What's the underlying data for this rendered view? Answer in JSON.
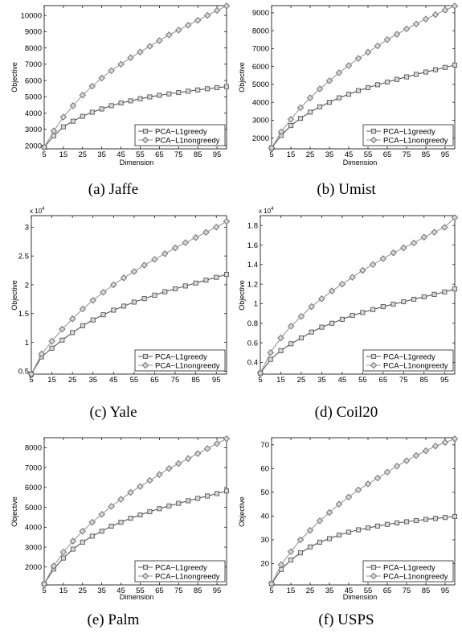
{
  "chart_data": [
    {
      "type": "line",
      "caption": "(a)  Jaffe",
      "xlabel": "Dimension",
      "ylabel": "Objective",
      "xlim": [
        5,
        100
      ],
      "ylim": [
        1800,
        10600
      ],
      "xticks": [
        5,
        15,
        25,
        35,
        45,
        55,
        65,
        75,
        85,
        95
      ],
      "yticks": [
        2000,
        3000,
        4000,
        5000,
        6000,
        7000,
        8000,
        9000,
        10000
      ],
      "yticklabels": [
        "2000",
        "3000",
        "4000",
        "5000",
        "6000",
        "7000",
        "8000",
        "9000",
        "10000"
      ],
      "multiplier": "",
      "legend_position": "lower-right",
      "x": [
        5,
        10,
        15,
        20,
        25,
        30,
        35,
        40,
        45,
        50,
        55,
        60,
        65,
        70,
        75,
        80,
        85,
        90,
        95,
        100
      ],
      "series": [
        {
          "name": "PCA−L1greedy",
          "marker": "square",
          "values": [
            1900,
            2600,
            3150,
            3500,
            3800,
            4050,
            4250,
            4450,
            4620,
            4750,
            4880,
            4990,
            5090,
            5180,
            5260,
            5340,
            5420,
            5490,
            5560,
            5620
          ]
        },
        {
          "name": "PCA−L1nongreedy",
          "marker": "diamond",
          "values": [
            1900,
            2900,
            3750,
            4450,
            5100,
            5650,
            6150,
            6600,
            7000,
            7400,
            7750,
            8100,
            8450,
            8800,
            9100,
            9400,
            9700,
            10000,
            10300,
            10580
          ]
        }
      ]
    },
    {
      "type": "line",
      "caption": "(b)  Umist",
      "xlabel": "Dimension",
      "ylabel": "Objective",
      "xlim": [
        5,
        100
      ],
      "ylim": [
        1400,
        9400
      ],
      "xticks": [
        5,
        15,
        25,
        35,
        45,
        55,
        65,
        75,
        85,
        95
      ],
      "yticks": [
        2000,
        3000,
        4000,
        5000,
        6000,
        7000,
        8000,
        9000
      ],
      "yticklabels": [
        "2000",
        "3000",
        "4000",
        "5000",
        "6000",
        "7000",
        "8000",
        "9000"
      ],
      "multiplier": "",
      "legend_position": "lower-right",
      "x": [
        5,
        10,
        15,
        20,
        25,
        30,
        35,
        40,
        45,
        50,
        55,
        60,
        65,
        70,
        75,
        80,
        85,
        90,
        95,
        100
      ],
      "series": [
        {
          "name": "PCA−L1greedy",
          "marker": "square",
          "values": [
            1450,
            2150,
            2700,
            3100,
            3450,
            3750,
            4000,
            4250,
            4450,
            4650,
            4820,
            4980,
            5130,
            5280,
            5420,
            5560,
            5690,
            5820,
            5950,
            6080
          ]
        },
        {
          "name": "PCA−L1nongreedy",
          "marker": "diamond",
          "values": [
            1450,
            2350,
            3050,
            3700,
            4250,
            4750,
            5200,
            5650,
            6050,
            6450,
            6800,
            7150,
            7500,
            7800,
            8100,
            8380,
            8650,
            8900,
            9150,
            9380
          ]
        }
      ]
    },
    {
      "type": "line",
      "caption": "(c)  Yale",
      "xlabel": "",
      "ylabel": "Objective",
      "xlim": [
        5,
        100
      ],
      "ylim": [
        4500,
        32000
      ],
      "xticks": [
        5,
        15,
        25,
        35,
        45,
        55,
        65,
        75,
        85,
        95
      ],
      "yticks": [
        5000,
        10000,
        15000,
        20000,
        25000,
        30000
      ],
      "yticklabels": [
        "0.5",
        "1",
        "1.5",
        "2",
        "2.5",
        "3"
      ],
      "multiplier": "x 10^4",
      "legend_position": "lower-right",
      "x": [
        5,
        10,
        15,
        20,
        25,
        30,
        35,
        40,
        45,
        50,
        55,
        60,
        65,
        70,
        75,
        80,
        85,
        90,
        95,
        100
      ],
      "series": [
        {
          "name": "PCA−L1greedy",
          "marker": "square",
          "values": [
            4500,
            7500,
            9000,
            10400,
            11700,
            12900,
            13900,
            14800,
            15600,
            16300,
            17000,
            17600,
            18200,
            18800,
            19300,
            19800,
            20300,
            20800,
            21300,
            21800
          ]
        },
        {
          "name": "PCA−L1nongreedy",
          "marker": "diamond",
          "values": [
            4500,
            8000,
            10200,
            12300,
            14100,
            15800,
            17300,
            18700,
            20000,
            21200,
            22300,
            23400,
            24400,
            25400,
            26400,
            27300,
            28200,
            29100,
            30000,
            31000
          ]
        }
      ]
    },
    {
      "type": "line",
      "caption": "(d)  Coil20",
      "xlabel": "",
      "ylabel": "Objective",
      "xlim": [
        5,
        100
      ],
      "ylim": [
        2800,
        19000
      ],
      "xticks": [
        5,
        15,
        25,
        35,
        45,
        55,
        65,
        75,
        85,
        95
      ],
      "yticks": [
        4000,
        6000,
        8000,
        10000,
        12000,
        14000,
        16000,
        18000
      ],
      "yticklabels": [
        "0.4",
        "0.6",
        "0.8",
        "1",
        "1.2",
        "1.4",
        "1.6",
        "1.8"
      ],
      "multiplier": "x 10^4",
      "legend_position": "lower-right",
      "x": [
        5,
        10,
        15,
        20,
        25,
        30,
        35,
        40,
        45,
        50,
        55,
        60,
        65,
        70,
        75,
        80,
        85,
        90,
        95,
        100
      ],
      "series": [
        {
          "name": "PCA−L1greedy",
          "marker": "square",
          "values": [
            2900,
            4300,
            5200,
            5900,
            6500,
            7100,
            7600,
            8000,
            8400,
            8800,
            9100,
            9400,
            9700,
            9950,
            10200,
            10450,
            10700,
            10950,
            11200,
            11500
          ]
        },
        {
          "name": "PCA−L1nongreedy",
          "marker": "diamond",
          "values": [
            2900,
            5000,
            6500,
            7700,
            8700,
            9700,
            10500,
            11300,
            12000,
            12700,
            13400,
            14000,
            14600,
            15200,
            15700,
            16200,
            16800,
            17300,
            17800,
            18800
          ]
        }
      ]
    },
    {
      "type": "line",
      "caption": "(e)  Palm",
      "xlabel": "Dimension",
      "ylabel": "Objective",
      "xlim": [
        5,
        100
      ],
      "ylim": [
        1100,
        8500
      ],
      "xticks": [
        5,
        15,
        25,
        35,
        45,
        55,
        65,
        75,
        85,
        95
      ],
      "yticks": [
        2000,
        3000,
        4000,
        5000,
        6000,
        7000,
        8000
      ],
      "yticklabels": [
        "2000",
        "3000",
        "4000",
        "5000",
        "6000",
        "7000",
        "8000"
      ],
      "multiplier": "",
      "legend_position": "lower-right",
      "x": [
        5,
        10,
        15,
        20,
        25,
        30,
        35,
        40,
        45,
        50,
        55,
        60,
        65,
        70,
        75,
        80,
        85,
        90,
        95,
        100
      ],
      "series": [
        {
          "name": "PCA−L1greedy",
          "marker": "square",
          "values": [
            1150,
            1900,
            2450,
            2900,
            3250,
            3550,
            3800,
            4050,
            4250,
            4450,
            4620,
            4780,
            4930,
            5070,
            5200,
            5330,
            5450,
            5570,
            5690,
            5820
          ]
        },
        {
          "name": "PCA−L1nongreedy",
          "marker": "diamond",
          "values": [
            1150,
            2050,
            2750,
            3300,
            3800,
            4250,
            4650,
            5050,
            5400,
            5750,
            6050,
            6350,
            6650,
            6950,
            7200,
            7450,
            7700,
            7950,
            8200,
            8450
          ]
        }
      ]
    },
    {
      "type": "line",
      "caption": "(f)  USPS",
      "xlabel": "Dimension",
      "ylabel": "Objective",
      "xlim": [
        5,
        100
      ],
      "ylim": [
        11,
        73
      ],
      "xticks": [
        5,
        15,
        25,
        35,
        45,
        55,
        65,
        75,
        85,
        95
      ],
      "yticks": [
        20,
        30,
        40,
        50,
        60,
        70
      ],
      "yticklabels": [
        "20",
        "30",
        "40",
        "50",
        "60",
        "70"
      ],
      "multiplier": "",
      "legend_position": "lower-right",
      "x": [
        5,
        10,
        15,
        20,
        25,
        30,
        35,
        40,
        45,
        50,
        55,
        60,
        65,
        70,
        75,
        80,
        85,
        90,
        95,
        100
      ],
      "series": [
        {
          "name": "PCA−L1greedy",
          "marker": "square",
          "values": [
            11.5,
            17.5,
            21.5,
            24.5,
            27,
            29,
            30.5,
            32,
            33.2,
            34.2,
            35,
            35.8,
            36.5,
            37.1,
            37.6,
            38.1,
            38.6,
            39,
            39.4,
            39.8
          ]
        },
        {
          "name": "PCA−L1nongreedy",
          "marker": "diamond",
          "values": [
            11.5,
            19.5,
            25,
            30,
            34,
            38,
            41.5,
            45,
            48,
            51,
            53.5,
            56,
            58.5,
            61,
            63.3,
            65.5,
            67.5,
            69.5,
            71,
            72.5
          ]
        }
      ]
    }
  ]
}
